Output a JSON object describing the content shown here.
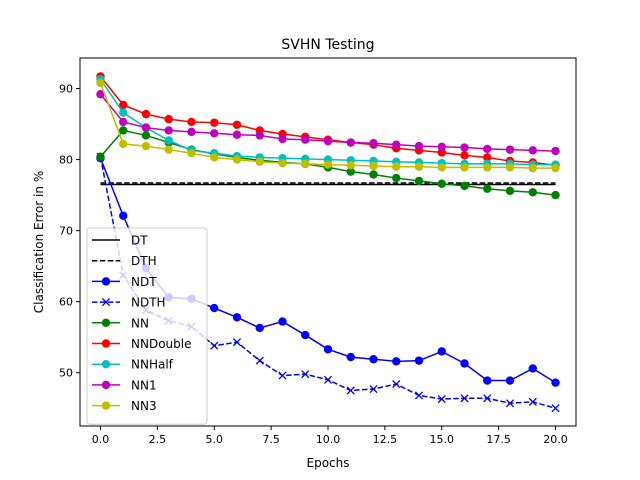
{
  "chart_data": {
    "type": "line",
    "title": "SVHN Testing",
    "xlabel": "Epochs",
    "ylabel": "Classification Error in %",
    "xlim": [
      -0.9,
      20.9
    ],
    "ylim": [
      42.5,
      94.3
    ],
    "xticks": [
      0.0,
      2.5,
      5.0,
      7.5,
      10.0,
      12.5,
      15.0,
      17.5,
      20.0
    ],
    "xtick_labels": [
      "0.0",
      "2.5",
      "5.0",
      "7.5",
      "10.0",
      "12.5",
      "15.0",
      "17.5",
      "20.0"
    ],
    "yticks": [
      50,
      60,
      70,
      80,
      90
    ],
    "ytick_labels": [
      "50",
      "60",
      "70",
      "80",
      "90"
    ],
    "grid": false,
    "legend_position": "lower-left",
    "x": [
      0,
      1,
      2,
      3,
      4,
      5,
      6,
      7,
      8,
      9,
      10,
      11,
      12,
      13,
      14,
      15,
      16,
      17,
      18,
      19,
      20
    ],
    "series": [
      {
        "name": "DT",
        "color": "#000000",
        "linestyle": "solid",
        "marker": "none",
        "x": [
          0,
          20
        ],
        "values": [
          76.5,
          76.5
        ]
      },
      {
        "name": "DTH",
        "color": "#000000",
        "linestyle": "dashed",
        "marker": "none",
        "x": [
          0,
          20
        ],
        "values": [
          76.7,
          76.7
        ]
      },
      {
        "name": "NDT",
        "color": "#0000ff",
        "linestyle": "solid",
        "marker": "circle",
        "values": [
          80.2,
          72.1,
          64.7,
          60.6,
          60.4,
          59.1,
          57.8,
          56.3,
          57.2,
          55.3,
          53.3,
          52.2,
          51.9,
          51.6,
          51.7,
          53.0,
          51.3,
          48.9,
          48.9,
          50.6,
          48.6
        ]
      },
      {
        "name": "NDTH",
        "color": "#0000ff",
        "linestyle": "dashed",
        "marker": "x",
        "values": [
          80.4,
          63.7,
          58.8,
          57.3,
          56.5,
          53.8,
          54.3,
          51.7,
          49.6,
          49.8,
          49.0,
          47.5,
          47.7,
          48.4,
          46.8,
          46.3,
          46.4,
          46.4,
          45.7,
          45.9,
          45.0
        ]
      },
      {
        "name": "NN",
        "color": "#008000",
        "linestyle": "solid",
        "marker": "circle",
        "values": [
          80.4,
          84.1,
          83.4,
          82.4,
          81.4,
          80.8,
          80.3,
          79.9,
          79.6,
          79.4,
          78.9,
          78.3,
          77.9,
          77.4,
          77.0,
          76.6,
          76.3,
          75.9,
          75.6,
          75.4,
          75.0
        ]
      },
      {
        "name": "NNDouble",
        "color": "#ff0000",
        "linestyle": "solid",
        "marker": "circle",
        "values": [
          91.7,
          87.7,
          86.4,
          85.7,
          85.3,
          85.2,
          84.9,
          84.1,
          83.6,
          83.2,
          82.8,
          82.4,
          82.1,
          81.6,
          81.3,
          81.0,
          80.6,
          80.3,
          79.8,
          79.6,
          79.2
        ]
      },
      {
        "name": "NNHalf",
        "color": "#00bfbf",
        "linestyle": "solid",
        "marker": "circle",
        "values": [
          91.3,
          86.6,
          84.5,
          82.7,
          81.3,
          80.9,
          80.5,
          80.3,
          80.2,
          80.1,
          80.0,
          79.9,
          79.8,
          79.7,
          79.6,
          79.5,
          79.4,
          79.4,
          79.4,
          79.3,
          79.3
        ]
      },
      {
        "name": "NN1",
        "color": "#bf00bf",
        "linestyle": "solid",
        "marker": "circle",
        "values": [
          89.2,
          85.3,
          84.5,
          84.1,
          83.9,
          83.7,
          83.5,
          83.4,
          82.9,
          82.8,
          82.6,
          82.4,
          82.3,
          82.1,
          81.9,
          81.8,
          81.7,
          81.5,
          81.4,
          81.3,
          81.2
        ]
      },
      {
        "name": "NN3",
        "color": "#bfbf00",
        "linestyle": "solid",
        "marker": "circle",
        "values": [
          90.8,
          82.2,
          81.9,
          81.4,
          80.9,
          80.3,
          80.0,
          79.7,
          79.5,
          79.4,
          79.3,
          79.2,
          79.1,
          79.0,
          79.0,
          78.9,
          78.9,
          78.9,
          78.9,
          78.8,
          78.8
        ]
      }
    ]
  }
}
